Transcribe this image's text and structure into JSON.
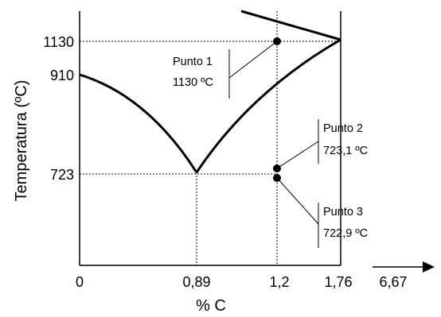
{
  "diagram": {
    "axes": {
      "y_label": "Temperatura (ºC)",
      "x_label": "% C",
      "y_ticks": [
        "1130",
        "910",
        "723"
      ],
      "x_ticks": [
        "0",
        "0,89",
        "1,2",
        "1,76"
      ],
      "x_extra_tick": "6,67"
    },
    "points": [
      {
        "label": "Punto 1",
        "value": "1130 ºC"
      },
      {
        "label": "Punto 2",
        "value": "723,1 ºC"
      },
      {
        "label": "Punto 3",
        "value": "722,9 ºC"
      }
    ]
  }
}
